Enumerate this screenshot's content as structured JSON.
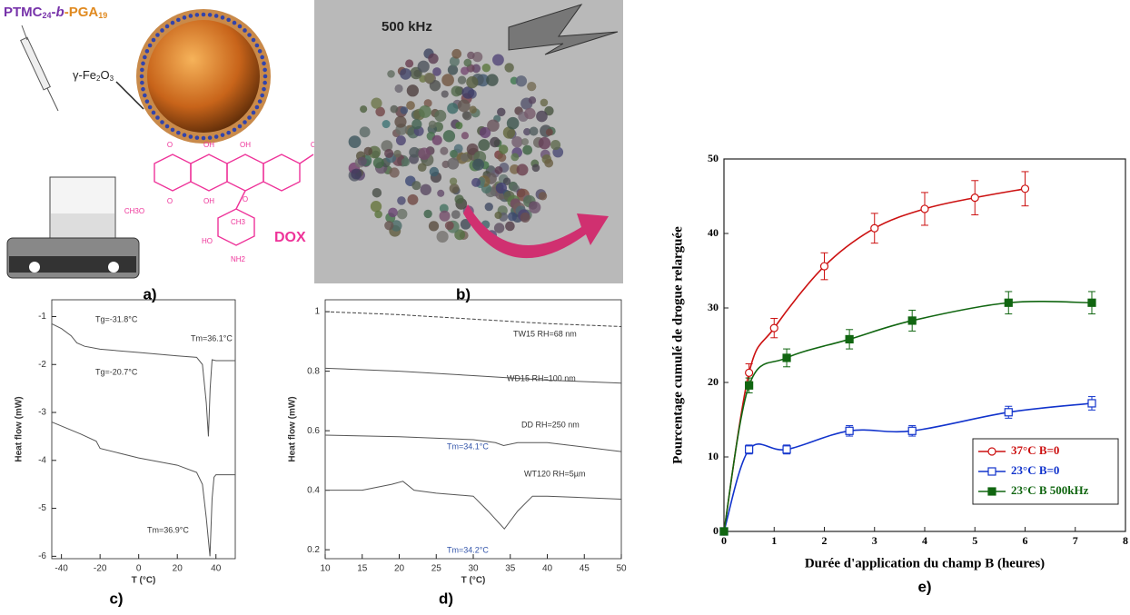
{
  "illustrations": {
    "a": {
      "label": "a)",
      "title_parts": [
        "PTMC",
        "24",
        "-",
        "b",
        "-",
        "PGA",
        "19"
      ],
      "particle_parts": [
        "γ-Fe",
        "2",
        "O",
        "3"
      ],
      "drug": "DOX",
      "atoms": [
        "O",
        "OH",
        "O",
        "OH",
        "OH",
        "CH3O",
        "O",
        "OH",
        "O",
        "CH3",
        "HO",
        "NH2"
      ]
    },
    "b": {
      "label": "b)",
      "field": "500 kHz"
    }
  },
  "chart_data": [
    {
      "type": "line",
      "label": "c)",
      "xlabel": "T (°C)",
      "ylabel": "Heat flow (mW)",
      "xlim": [
        -45,
        50
      ],
      "xticks": [
        -40,
        -20,
        0,
        20,
        40
      ],
      "ylim": [
        -6.05,
        -0.65
      ],
      "yticks": [
        -1,
        -2,
        -3,
        -4,
        -5,
        -6
      ],
      "series": [
        {
          "color": "#555555",
          "linestyle": "solid",
          "x": [
            -45,
            -40,
            -35,
            -32,
            -28,
            -20,
            0,
            20,
            30,
            33,
            35,
            36.1,
            37,
            38,
            40,
            50
          ],
          "values": [
            -1.15,
            -1.25,
            -1.4,
            -1.55,
            -1.62,
            -1.68,
            -1.75,
            -1.82,
            -1.85,
            -2.0,
            -2.8,
            -3.5,
            -2.5,
            -1.9,
            -1.92,
            -1.92
          ]
        },
        {
          "color": "#555555",
          "linestyle": "solid",
          "x": [
            -45,
            -30,
            -22,
            -20,
            -10,
            0,
            20,
            30,
            33,
            35,
            36.9,
            38,
            39,
            40,
            50
          ],
          "values": [
            -3.2,
            -3.45,
            -3.6,
            -3.75,
            -3.85,
            -3.95,
            -4.1,
            -4.25,
            -4.5,
            -5.2,
            -6.0,
            -4.8,
            -4.35,
            -4.3,
            -4.3
          ]
        }
      ],
      "annotations": [
        {
          "text": "Tg=-31.8°C",
          "color": "#333333"
        },
        {
          "text": "Tm=36.1°C",
          "color": "#333333"
        },
        {
          "text": "Tg=-20.7°C",
          "color": "#333333"
        },
        {
          "text": "Tm=36.9°C",
          "color": "#333333"
        }
      ]
    },
    {
      "type": "line",
      "label": "d)",
      "xlabel": "T (°C)",
      "ylabel": "Heat flow (mW)",
      "xlim": [
        10,
        50
      ],
      "xticks": [
        10,
        15,
        20,
        25,
        30,
        35,
        40,
        45,
        50
      ],
      "ylim": [
        0.17,
        1.04
      ],
      "yticks": [
        0.2,
        0.4,
        0.6,
        0.8,
        1
      ],
      "series": [
        {
          "color": "#444444",
          "linestyle": "dash",
          "x": [
            10,
            20,
            30,
            40,
            50
          ],
          "values": [
            1.0,
            0.99,
            0.975,
            0.96,
            0.95
          ]
        },
        {
          "color": "#555555",
          "linestyle": "solid",
          "x": [
            10,
            20,
            30,
            40,
            50
          ],
          "values": [
            0.81,
            0.8,
            0.785,
            0.77,
            0.76
          ]
        },
        {
          "color": "#555555",
          "linestyle": "solid",
          "x": [
            10,
            20,
            30,
            33,
            34.1,
            36,
            40,
            50
          ],
          "values": [
            0.585,
            0.58,
            0.57,
            0.56,
            0.55,
            0.56,
            0.56,
            0.53
          ]
        },
        {
          "color": "#555555",
          "linestyle": "solid",
          "x": [
            10,
            15,
            19,
            20.5,
            22,
            25,
            30,
            32,
            34.2,
            36,
            38,
            40,
            50
          ],
          "values": [
            0.4,
            0.4,
            0.42,
            0.43,
            0.4,
            0.39,
            0.38,
            0.33,
            0.27,
            0.33,
            0.38,
            0.38,
            0.37
          ]
        }
      ],
      "annotations": [
        {
          "text": "TW15 RH=68 nm",
          "color": "#333333"
        },
        {
          "text": "WD15 RH=100 nm",
          "color": "#333333"
        },
        {
          "text": "DD RH=250 nm",
          "color": "#333333"
        },
        {
          "text": "Tm=34.1°C",
          "color": "#3355aa"
        },
        {
          "text": "WT120 RH=5µm",
          "color": "#333333"
        },
        {
          "text": "Tm=34.2°C",
          "color": "#3355aa"
        }
      ]
    },
    {
      "type": "line",
      "label": "e)",
      "xlabel": "Durée d'application du champ B (heures)",
      "ylabel": "Pourcentage cumulé de drogue relarguée",
      "xlim": [
        0,
        8
      ],
      "xticks": [
        0,
        1,
        2,
        3,
        4,
        5,
        6,
        7,
        8
      ],
      "ylim": [
        0,
        50
      ],
      "yticks": [
        0,
        10,
        20,
        30,
        40,
        50
      ],
      "legend": "lower right",
      "series": [
        {
          "name": "37°C B=0",
          "color": "#cc1111",
          "marker": "circle-open",
          "x": [
            0,
            0.5,
            1,
            2,
            3,
            4,
            5,
            6
          ],
          "values": [
            0,
            21.3,
            27.3,
            35.6,
            40.7,
            43.3,
            44.8,
            46
          ],
          "errors": [
            0,
            1.2,
            1.3,
            1.8,
            2.0,
            2.2,
            2.3,
            2.3
          ]
        },
        {
          "name": "23°C B=0",
          "color": "#1133cc",
          "marker": "square-open",
          "x": [
            0,
            0.5,
            1.25,
            2.5,
            3.75,
            5.67,
            7.33
          ],
          "values": [
            0,
            11,
            11,
            13.5,
            13.5,
            16,
            17.2
          ],
          "errors": [
            0,
            0.6,
            0.6,
            0.7,
            0.7,
            0.8,
            0.9
          ]
        },
        {
          "name": "23°C B 500kHz",
          "color": "#116611",
          "marker": "square-filled",
          "x": [
            0,
            0.5,
            1.25,
            2.5,
            3.75,
            5.67,
            7.33
          ],
          "values": [
            0,
            19.6,
            23.3,
            25.8,
            28.3,
            30.7,
            30.7
          ],
          "errors": [
            0,
            1.0,
            1.2,
            1.3,
            1.4,
            1.5,
            1.5
          ]
        }
      ]
    }
  ]
}
